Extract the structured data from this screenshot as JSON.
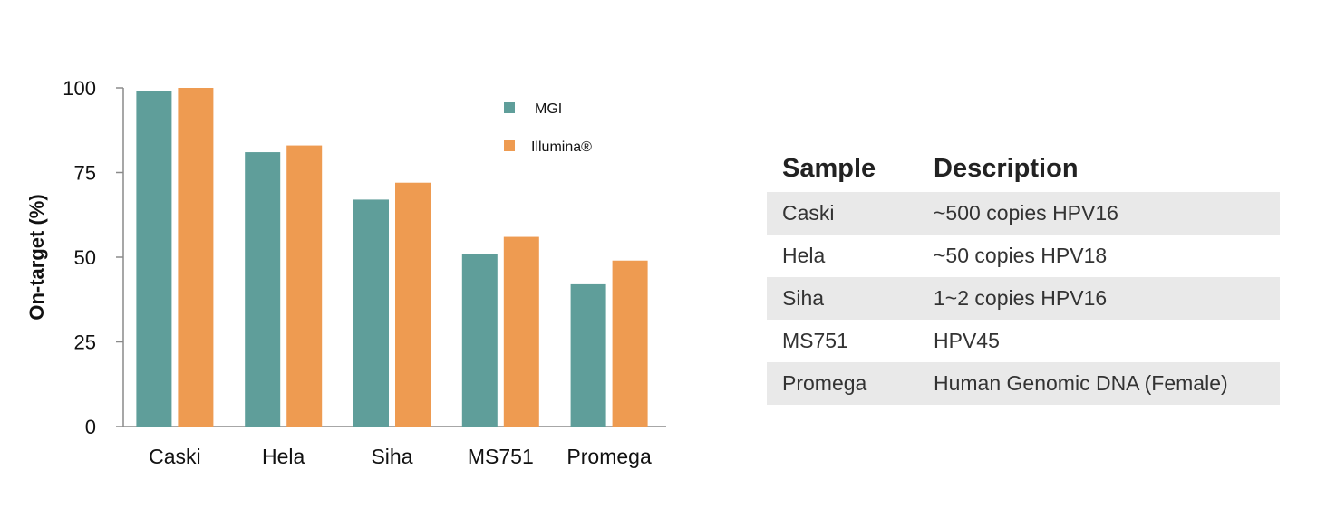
{
  "chart_data": {
    "type": "bar",
    "categories": [
      "Caski",
      "Hela",
      "Siha",
      "MS751",
      "Promega"
    ],
    "series": [
      {
        "name": "MGI",
        "values": [
          99,
          81,
          67,
          51,
          42
        ],
        "color": "#5f9e9a"
      },
      {
        "name": "Illumina®",
        "values": [
          100,
          83,
          72,
          56,
          49
        ],
        "color": "#ee9b51"
      }
    ],
    "ylabel": "On-target (%)",
    "ylim": [
      0,
      100
    ],
    "yticks": [
      "0",
      "25",
      "50",
      "75",
      "100"
    ],
    "grid": false,
    "legend": "top-right"
  },
  "table": {
    "headers": [
      "Sample",
      "Description"
    ],
    "rows": [
      [
        "Caski",
        "~500 copies HPV16"
      ],
      [
        "Hela",
        "~50 copies HPV18"
      ],
      [
        "Siha",
        "1~2 copies HPV16"
      ],
      [
        "MS751",
        "HPV45"
      ],
      [
        "Promega",
        "Human Genomic DNA (Female)"
      ]
    ]
  }
}
